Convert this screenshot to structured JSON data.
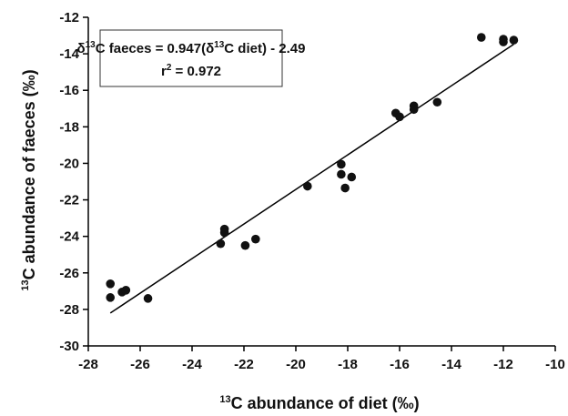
{
  "chart_data": {
    "type": "scatter",
    "xlabel": "13C abundance of diet (‰)",
    "xlabel_sup": "13",
    "xlabel_rest": "C abundance of diet (‰)",
    "ylabel": "13C abundance of faeces (‰)",
    "ylabel_sup": "13",
    "ylabel_rest": "C abundance of faeces (‰)",
    "xlim": [
      -28,
      -10
    ],
    "ylim": [
      -30,
      -12
    ],
    "xticks": [
      "-28",
      "-26",
      "-24",
      "-22",
      "-20",
      "-18",
      "-16",
      "-14",
      "-12",
      "-10"
    ],
    "yticks": [
      "-12",
      "-14",
      "-16",
      "-18",
      "-20",
      "-22",
      "-24",
      "-26",
      "-28",
      "-30"
    ],
    "grid": false,
    "legend": "none",
    "points": [
      {
        "x": -27.15,
        "y": -26.6
      },
      {
        "x": -27.15,
        "y": -27.35
      },
      {
        "x": -26.7,
        "y": -27.05
      },
      {
        "x": -26.55,
        "y": -26.95
      },
      {
        "x": -25.7,
        "y": -27.4
      },
      {
        "x": -22.9,
        "y": -24.4
      },
      {
        "x": -22.75,
        "y": -23.6
      },
      {
        "x": -22.75,
        "y": -23.8
      },
      {
        "x": -21.95,
        "y": -24.5
      },
      {
        "x": -21.55,
        "y": -24.15
      },
      {
        "x": -19.55,
        "y": -21.25
      },
      {
        "x": -18.25,
        "y": -20.05
      },
      {
        "x": -18.25,
        "y": -20.6
      },
      {
        "x": -18.1,
        "y": -21.35
      },
      {
        "x": -17.85,
        "y": -20.75
      },
      {
        "x": -16.15,
        "y": -17.25
      },
      {
        "x": -16.0,
        "y": -17.45
      },
      {
        "x": -15.45,
        "y": -16.85
      },
      {
        "x": -15.45,
        "y": -17.05
      },
      {
        "x": -14.55,
        "y": -16.65
      },
      {
        "x": -12.85,
        "y": -13.1
      },
      {
        "x": -12.0,
        "y": -13.2
      },
      {
        "x": -12.0,
        "y": -13.35
      },
      {
        "x": -11.6,
        "y": -13.25
      }
    ],
    "fit": {
      "slope": 0.947,
      "intercept": -2.49,
      "x_range": [
        -27.15,
        -11.6
      ]
    },
    "annotation": {
      "eq_lead": "δ",
      "eq_sup1": "13",
      "eq_mid": "C faeces = 0.947(δ",
      "eq_sup2": "13",
      "eq_tail": "C diet) - 2.49",
      "r2_lead": "r",
      "r2_sup": "2",
      "r2_tail": " = 0.972"
    },
    "colors": {
      "marker": "#111111",
      "line": "#000000",
      "axis": "#000000"
    }
  }
}
